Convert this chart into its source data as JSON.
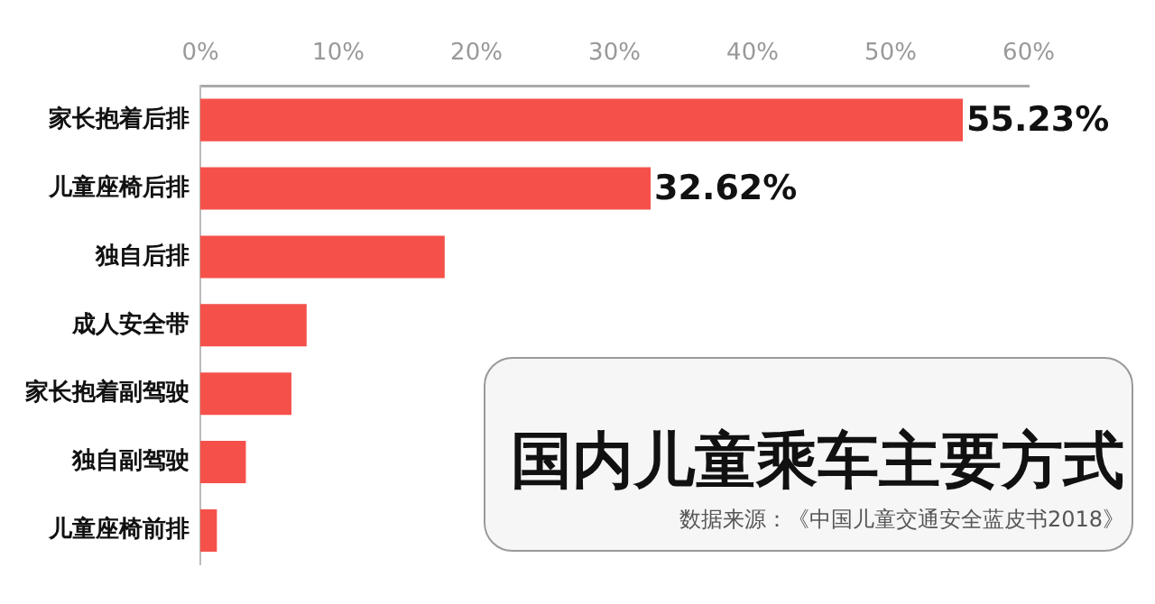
{
  "chart_data": {
    "type": "bar",
    "orientation": "horizontal",
    "title": "国内儿童乘车主要方式",
    "annotations": [
      "数据来源：《中国儿童交通安全蓝皮书2018》"
    ],
    "categories": [
      "家长抱着后排",
      "儿童座椅后排",
      "独自后排",
      "成人安全带",
      "家长抱着副驾驶",
      "独自副驾驶",
      "儿童座椅前排"
    ],
    "values": [
      55.23,
      32.62,
      17.7,
      7.7,
      6.6,
      3.3,
      1.2
    ],
    "value_labels": [
      "55.23%",
      "32.62%",
      null,
      null,
      null,
      null,
      null
    ],
    "color": "#f5514a",
    "xlim": [
      0,
      60
    ],
    "xticks": [
      {
        "value": 0,
        "label": "0%"
      },
      {
        "value": 10,
        "label": "10%"
      },
      {
        "value": 20,
        "label": "20%"
      },
      {
        "value": 30,
        "label": "30%"
      },
      {
        "value": 40,
        "label": "40%"
      },
      {
        "value": 50,
        "label": "50%"
      },
      {
        "value": 60,
        "label": "60%"
      }
    ],
    "grid": false,
    "legend": false
  }
}
